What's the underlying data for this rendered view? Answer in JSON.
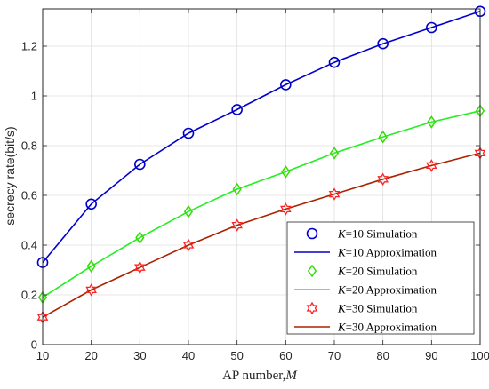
{
  "chart_data": {
    "type": "line",
    "xlabel": "AP number,",
    "xlabel_var": "M",
    "ylabel": "secrecy rate(bit/s)",
    "xlim": [
      10,
      100
    ],
    "ylim": [
      0,
      1.35
    ],
    "xticks": [
      10,
      20,
      30,
      40,
      50,
      60,
      70,
      80,
      90,
      100
    ],
    "yticks": [
      0,
      0.2,
      0.4,
      0.6,
      0.8,
      1,
      1.2
    ],
    "ytick_labels": [
      "0",
      "0.2",
      "0.4",
      "0.6",
      "0.8",
      "1",
      "1.2"
    ],
    "grid": true,
    "legend_position": "bottom-right",
    "x": [
      10,
      20,
      30,
      40,
      50,
      60,
      70,
      80,
      90,
      100
    ],
    "series": [
      {
        "name": "K=10 Simulation",
        "var": "K",
        "eq": "=10",
        "suffix": " Simulation",
        "kind": "marker",
        "marker": "circle",
        "color": "#0000cc",
        "values": [
          0.33,
          0.565,
          0.725,
          0.85,
          0.945,
          1.045,
          1.135,
          1.21,
          1.275,
          1.34
        ]
      },
      {
        "name": "K=10 Approximation",
        "var": "K",
        "eq": "=10",
        "suffix": " Approximation",
        "kind": "line",
        "color": "#0000cc",
        "values": [
          0.33,
          0.565,
          0.725,
          0.85,
          0.945,
          1.045,
          1.135,
          1.21,
          1.275,
          1.34
        ]
      },
      {
        "name": "K=20 Simulation",
        "var": "K",
        "eq": "=20",
        "suffix": " Simulation",
        "kind": "marker",
        "marker": "diamond",
        "color": "#33dd00",
        "values": [
          0.19,
          0.315,
          0.43,
          0.535,
          0.625,
          0.695,
          0.77,
          0.835,
          0.895,
          0.94
        ]
      },
      {
        "name": "K=20 Approximation",
        "var": "K",
        "eq": "=20",
        "suffix": " Approximation",
        "kind": "line",
        "color": "#22ee22",
        "values": [
          0.19,
          0.315,
          0.43,
          0.535,
          0.625,
          0.695,
          0.77,
          0.835,
          0.895,
          0.94
        ]
      },
      {
        "name": "K=30 Simulation",
        "var": "K",
        "eq": "=30",
        "suffix": " Simulation",
        "kind": "marker",
        "marker": "hexagram",
        "color": "#ff2222",
        "values": [
          0.11,
          0.22,
          0.31,
          0.4,
          0.48,
          0.545,
          0.605,
          0.665,
          0.72,
          0.77
        ]
      },
      {
        "name": "K=30 Approximation",
        "var": "K",
        "eq": "=30",
        "suffix": " Approximation",
        "kind": "line",
        "color": "#aa2200",
        "values": [
          0.11,
          0.22,
          0.31,
          0.4,
          0.48,
          0.545,
          0.605,
          0.665,
          0.72,
          0.77
        ]
      }
    ]
  }
}
